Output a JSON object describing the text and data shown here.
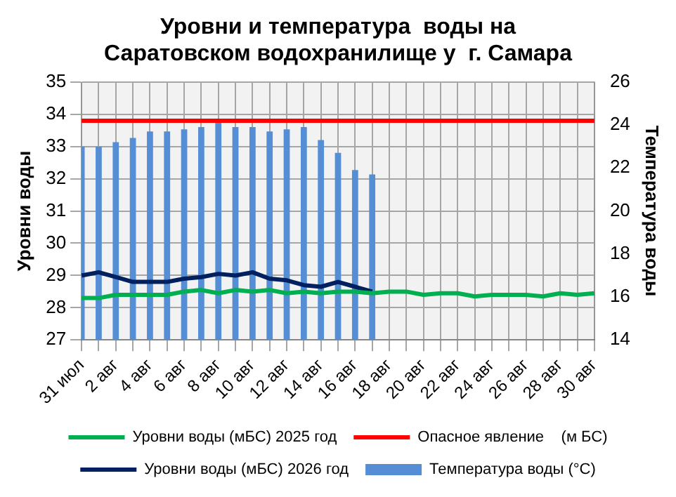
{
  "chart_data": {
    "type": "bar",
    "title": "Уровни и температура  воды на\nСаратовском водохранилище у  г. Самара",
    "ylabel": "Уровни воды",
    "y2label": "Температура воды",
    "categories": [
      "31 июл",
      null,
      "2 авг",
      null,
      "4 авг",
      null,
      "6 авг",
      null,
      "8 авг",
      null,
      "10 авг",
      null,
      "12 авг",
      null,
      "14 авг",
      null,
      "16 авг",
      null,
      "18 авг",
      null,
      "20 авг",
      null,
      "22 авг",
      null,
      "24 авг",
      null,
      "26 авг",
      null,
      "28 авг",
      null,
      "30 авг"
    ],
    "series": [
      {
        "name": "Температура воды (°C)",
        "axis": "y2",
        "color": "#558ed5",
        "values": [
          23.0,
          23.0,
          23.2,
          23.4,
          23.7,
          23.7,
          23.8,
          23.9,
          24.1,
          23.9,
          23.9,
          23.7,
          23.8,
          23.9,
          23.3,
          22.7,
          21.9,
          21.7,
          null,
          null,
          null,
          null,
          null,
          null,
          null,
          null,
          null,
          null,
          null,
          null,
          null
        ]
      },
      {
        "name": "Уровни воды (мБС) 2025 год",
        "type": "line",
        "color": "#00b050",
        "values": [
          28.3,
          28.3,
          28.4,
          28.4,
          28.4,
          28.4,
          28.5,
          28.55,
          28.45,
          28.55,
          28.5,
          28.55,
          28.45,
          28.5,
          28.45,
          28.5,
          28.5,
          28.45,
          28.5,
          28.5,
          28.4,
          28.45,
          28.45,
          28.35,
          28.4,
          28.4,
          28.4,
          28.35,
          28.45,
          28.4,
          28.45
        ]
      },
      {
        "name": "Опасное явление    (м БС)",
        "type": "line",
        "color": "#ff0000",
        "values": [
          33.8,
          33.8,
          33.8,
          33.8,
          33.8,
          33.8,
          33.8,
          33.8,
          33.8,
          33.8,
          33.8,
          33.8,
          33.8,
          33.8,
          33.8,
          33.8,
          33.8,
          33.8,
          33.8,
          33.8,
          33.8,
          33.8,
          33.8,
          33.8,
          33.8,
          33.8,
          33.8,
          33.8,
          33.8,
          33.8,
          33.8
        ]
      },
      {
        "name": "Уровни воды (мБС) 2026 год",
        "type": "line",
        "color": "#002060",
        "values": [
          29.0,
          29.1,
          28.95,
          28.8,
          28.8,
          28.8,
          28.9,
          28.95,
          29.05,
          29.0,
          29.1,
          28.9,
          28.85,
          28.7,
          28.65,
          28.8,
          28.65,
          28.5,
          null,
          null,
          null,
          null,
          null,
          null,
          null,
          null,
          null,
          null,
          null,
          null,
          null
        ]
      }
    ],
    "ylim": [
      27,
      35
    ],
    "yticks": [
      27,
      28,
      29,
      30,
      31,
      32,
      33,
      34,
      35
    ],
    "y2lim": [
      14,
      26
    ],
    "y2ticks": [
      14,
      16,
      18,
      20,
      22,
      24,
      26
    ],
    "grid": true,
    "legend": "bottom",
    "marker": "none"
  }
}
